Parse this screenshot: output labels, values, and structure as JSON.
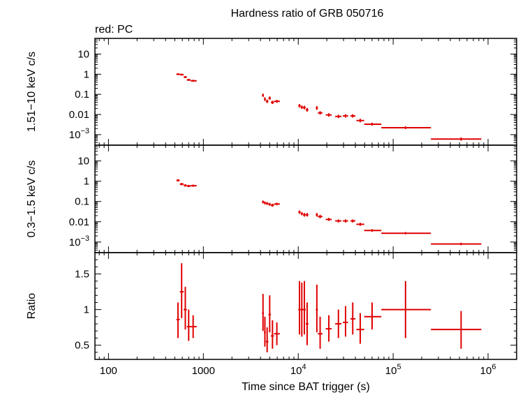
{
  "chart_data": {
    "type": "scatter",
    "title": "Hardness ratio of GRB 050716",
    "note": "red: PC",
    "x_axis": {
      "label": "Time since BAT trigger (s)",
      "scale": "log",
      "range": [
        72,
        2000000
      ],
      "ticks": [
        {
          "v": 100,
          "t": "100"
        },
        {
          "v": 1000,
          "t": "1000"
        },
        {
          "v": 10000,
          "b": "10",
          "e": "4"
        },
        {
          "v": 100000,
          "b": "10",
          "e": "5"
        },
        {
          "v": 1000000,
          "b": "10",
          "e": "6"
        }
      ]
    },
    "color": "#e00000",
    "panels": [
      {
        "id": "hard",
        "ylabel": "1.51−10 keV c/s",
        "scale": "log",
        "ylim": [
          0.0003,
          60
        ],
        "ticks": [
          {
            "v": 10,
            "t": "10"
          },
          {
            "v": 1,
            "t": "1"
          },
          {
            "v": 0.1,
            "t": "0.1"
          },
          {
            "v": 0.01,
            "t": "0.01"
          },
          {
            "v": 0.001,
            "b": "10",
            "e": "−3"
          }
        ],
        "points": [
          {
            "x": 540,
            "xl": 520,
            "xh": 565,
            "y": 1.0,
            "yl": 0.9,
            "yh": 1.12
          },
          {
            "x": 590,
            "xl": 565,
            "xh": 620,
            "y": 0.95,
            "yl": 0.85,
            "yh": 1.07
          },
          {
            "x": 645,
            "xl": 620,
            "xh": 670,
            "y": 0.72,
            "yl": 0.64,
            "yh": 0.81
          },
          {
            "x": 700,
            "xl": 670,
            "xh": 735,
            "y": 0.52,
            "yl": 0.46,
            "yh": 0.59
          },
          {
            "x": 780,
            "xl": 735,
            "xh": 850,
            "y": 0.47,
            "yl": 0.42,
            "yh": 0.53
          },
          {
            "x": 4250,
            "xl": 4150,
            "xh": 4350,
            "y": 0.09,
            "yl": 0.075,
            "yh": 0.108
          },
          {
            "x": 4450,
            "xl": 4350,
            "xh": 4550,
            "y": 0.058,
            "yl": 0.047,
            "yh": 0.071
          },
          {
            "x": 4700,
            "xl": 4550,
            "xh": 4850,
            "y": 0.045,
            "yl": 0.037,
            "yh": 0.055
          },
          {
            "x": 5000,
            "xl": 4850,
            "xh": 5150,
            "y": 0.065,
            "yl": 0.054,
            "yh": 0.078
          },
          {
            "x": 5350,
            "xl": 5150,
            "xh": 5550,
            "y": 0.04,
            "yl": 0.033,
            "yh": 0.048
          },
          {
            "x": 5950,
            "xl": 5550,
            "xh": 6400,
            "y": 0.045,
            "yl": 0.038,
            "yh": 0.053
          },
          {
            "x": 10300,
            "xl": 10000,
            "xh": 10600,
            "y": 0.027,
            "yl": 0.022,
            "yh": 0.033
          },
          {
            "x": 10900,
            "xl": 10600,
            "xh": 11200,
            "y": 0.023,
            "yl": 0.019,
            "yh": 0.028
          },
          {
            "x": 11600,
            "xl": 11200,
            "xh": 12000,
            "y": 0.022,
            "yl": 0.018,
            "yh": 0.027
          },
          {
            "x": 12400,
            "xl": 12000,
            "xh": 12800,
            "y": 0.017,
            "yl": 0.014,
            "yh": 0.021
          },
          {
            "x": 15700,
            "xl": 15300,
            "xh": 16100,
            "y": 0.021,
            "yl": 0.017,
            "yh": 0.026
          },
          {
            "x": 17000,
            "xl": 16100,
            "xh": 18000,
            "y": 0.012,
            "yl": 0.0098,
            "yh": 0.0146
          },
          {
            "x": 21000,
            "xl": 19500,
            "xh": 22500,
            "y": 0.0095,
            "yl": 0.0078,
            "yh": 0.0115
          },
          {
            "x": 26500,
            "xl": 24500,
            "xh": 28500,
            "y": 0.008,
            "yl": 0.0066,
            "yh": 0.0097
          },
          {
            "x": 31500,
            "xl": 29500,
            "xh": 33500,
            "y": 0.0085,
            "yl": 0.007,
            "yh": 0.0103
          },
          {
            "x": 37500,
            "xl": 35500,
            "xh": 40000,
            "y": 0.0085,
            "yl": 0.007,
            "yh": 0.0103
          },
          {
            "x": 45000,
            "xl": 41000,
            "xh": 49500,
            "y": 0.005,
            "yl": 0.0041,
            "yh": 0.0061
          },
          {
            "x": 60000,
            "xl": 49500,
            "xh": 75000,
            "y": 0.0033,
            "yl": 0.0028,
            "yh": 0.0039
          },
          {
            "x": 135000,
            "xl": 75000,
            "xh": 250000,
            "y": 0.0022,
            "yl": 0.0019,
            "yh": 0.0026
          },
          {
            "x": 520000,
            "xl": 250000,
            "xh": 850000,
            "y": 0.0006,
            "yl": 0.0005,
            "yh": 0.00072
          }
        ]
      },
      {
        "id": "soft",
        "ylabel": "0.3−1.5 keV c/s",
        "scale": "log",
        "ylim": [
          0.0003,
          60
        ],
        "ticks": [
          {
            "v": 10,
            "t": "10"
          },
          {
            "v": 1,
            "t": "1"
          },
          {
            "v": 0.1,
            "t": "0.1"
          },
          {
            "v": 0.01,
            "t": "0.01"
          },
          {
            "v": 0.001,
            "b": "10",
            "e": "−3"
          }
        ],
        "points": [
          {
            "x": 540,
            "xl": 520,
            "xh": 565,
            "y": 1.1,
            "yl": 0.96,
            "yh": 1.25
          },
          {
            "x": 590,
            "xl": 565,
            "xh": 620,
            "y": 0.72,
            "yl": 0.63,
            "yh": 0.82
          },
          {
            "x": 645,
            "xl": 620,
            "xh": 670,
            "y": 0.62,
            "yl": 0.54,
            "yh": 0.71
          },
          {
            "x": 700,
            "xl": 670,
            "xh": 735,
            "y": 0.58,
            "yl": 0.51,
            "yh": 0.66
          },
          {
            "x": 780,
            "xl": 735,
            "xh": 850,
            "y": 0.6,
            "yl": 0.53,
            "yh": 0.68
          },
          {
            "x": 4250,
            "xl": 4150,
            "xh": 4350,
            "y": 0.095,
            "yl": 0.081,
            "yh": 0.111
          },
          {
            "x": 4450,
            "xl": 4350,
            "xh": 4550,
            "y": 0.085,
            "yl": 0.072,
            "yh": 0.1
          },
          {
            "x": 4700,
            "xl": 4550,
            "xh": 4850,
            "y": 0.08,
            "yl": 0.068,
            "yh": 0.094
          },
          {
            "x": 5000,
            "xl": 4850,
            "xh": 5150,
            "y": 0.072,
            "yl": 0.061,
            "yh": 0.085
          },
          {
            "x": 5350,
            "xl": 5150,
            "xh": 5550,
            "y": 0.065,
            "yl": 0.055,
            "yh": 0.077
          },
          {
            "x": 5950,
            "xl": 5550,
            "xh": 6400,
            "y": 0.075,
            "yl": 0.065,
            "yh": 0.087
          },
          {
            "x": 10300,
            "xl": 10000,
            "xh": 10600,
            "y": 0.03,
            "yl": 0.025,
            "yh": 0.036
          },
          {
            "x": 10900,
            "xl": 10600,
            "xh": 11200,
            "y": 0.025,
            "yl": 0.021,
            "yh": 0.03
          },
          {
            "x": 11600,
            "xl": 11200,
            "xh": 12000,
            "y": 0.022,
            "yl": 0.018,
            "yh": 0.027
          },
          {
            "x": 12400,
            "xl": 12000,
            "xh": 12800,
            "y": 0.022,
            "yl": 0.018,
            "yh": 0.027
          },
          {
            "x": 15700,
            "xl": 15300,
            "xh": 16100,
            "y": 0.022,
            "yl": 0.018,
            "yh": 0.027
          },
          {
            "x": 17000,
            "xl": 16100,
            "xh": 18000,
            "y": 0.018,
            "yl": 0.015,
            "yh": 0.022
          },
          {
            "x": 21000,
            "xl": 19500,
            "xh": 22500,
            "y": 0.013,
            "yl": 0.011,
            "yh": 0.0155
          },
          {
            "x": 26500,
            "xl": 24500,
            "xh": 28500,
            "y": 0.011,
            "yl": 0.0092,
            "yh": 0.013
          },
          {
            "x": 31500,
            "xl": 29500,
            "xh": 33500,
            "y": 0.011,
            "yl": 0.0092,
            "yh": 0.013
          },
          {
            "x": 37500,
            "xl": 35500,
            "xh": 40000,
            "y": 0.011,
            "yl": 0.0092,
            "yh": 0.013
          },
          {
            "x": 45000,
            "xl": 41000,
            "xh": 49500,
            "y": 0.0075,
            "yl": 0.0063,
            "yh": 0.0089
          },
          {
            "x": 60000,
            "xl": 49500,
            "xh": 75000,
            "y": 0.0037,
            "yl": 0.0032,
            "yh": 0.0043
          },
          {
            "x": 135000,
            "xl": 75000,
            "xh": 250000,
            "y": 0.0027,
            "yl": 0.0024,
            "yh": 0.0031
          },
          {
            "x": 520000,
            "xl": 250000,
            "xh": 850000,
            "y": 0.0008,
            "yl": 0.0007,
            "yh": 0.00092
          }
        ]
      },
      {
        "id": "ratio",
        "ylabel": "Ratio",
        "scale": "linear",
        "ylim": [
          0.3,
          1.8
        ],
        "ticks": [
          {
            "v": 1.5,
            "t": "1.5"
          },
          {
            "v": 1,
            "t": "1"
          },
          {
            "v": 0.5,
            "t": "0.5"
          }
        ],
        "points": [
          {
            "x": 540,
            "xl": 520,
            "xh": 565,
            "y": 0.86,
            "yl": 0.6,
            "yh": 1.1
          },
          {
            "x": 590,
            "xl": 565,
            "xh": 620,
            "y": 1.25,
            "yl": 0.88,
            "yh": 1.65
          },
          {
            "x": 645,
            "xl": 620,
            "xh": 670,
            "y": 1.0,
            "yl": 0.72,
            "yh": 1.32
          },
          {
            "x": 700,
            "xl": 670,
            "xh": 735,
            "y": 0.76,
            "yl": 0.56,
            "yh": 1.0
          },
          {
            "x": 780,
            "xl": 735,
            "xh": 850,
            "y": 0.76,
            "yl": 0.6,
            "yh": 0.92
          },
          {
            "x": 4250,
            "xl": 4150,
            "xh": 4350,
            "y": 0.95,
            "yl": 0.7,
            "yh": 1.22
          },
          {
            "x": 4450,
            "xl": 4350,
            "xh": 4550,
            "y": 0.68,
            "yl": 0.48,
            "yh": 0.9
          },
          {
            "x": 4700,
            "xl": 4550,
            "xh": 4850,
            "y": 0.55,
            "yl": 0.4,
            "yh": 0.75
          },
          {
            "x": 5000,
            "xl": 4850,
            "xh": 5150,
            "y": 0.93,
            "yl": 0.68,
            "yh": 1.2
          },
          {
            "x": 5350,
            "xl": 5150,
            "xh": 5550,
            "y": 0.63,
            "yl": 0.45,
            "yh": 0.85
          },
          {
            "x": 5950,
            "xl": 5550,
            "xh": 6400,
            "y": 0.66,
            "yl": 0.5,
            "yh": 0.82
          },
          {
            "x": 10300,
            "xl": 10000,
            "xh": 10600,
            "y": 1.0,
            "yl": 0.65,
            "yh": 1.4
          },
          {
            "x": 10900,
            "xl": 10600,
            "xh": 11200,
            "y": 1.0,
            "yl": 0.62,
            "yh": 1.38
          },
          {
            "x": 11600,
            "xl": 11200,
            "xh": 12000,
            "y": 1.0,
            "yl": 0.65,
            "yh": 1.4
          },
          {
            "x": 12400,
            "xl": 12000,
            "xh": 12800,
            "y": 0.8,
            "yl": 0.5,
            "yh": 1.1
          },
          {
            "x": 15700,
            "xl": 15300,
            "xh": 16100,
            "y": 1.0,
            "yl": 0.68,
            "yh": 1.35
          },
          {
            "x": 17000,
            "xl": 16100,
            "xh": 18000,
            "y": 0.66,
            "yl": 0.45,
            "yh": 0.9
          },
          {
            "x": 21000,
            "xl": 19500,
            "xh": 22500,
            "y": 0.73,
            "yl": 0.55,
            "yh": 0.92
          },
          {
            "x": 26500,
            "xl": 24500,
            "xh": 28500,
            "y": 0.8,
            "yl": 0.6,
            "yh": 1.0
          },
          {
            "x": 31500,
            "xl": 29500,
            "xh": 33500,
            "y": 0.82,
            "yl": 0.62,
            "yh": 1.05
          },
          {
            "x": 37500,
            "xl": 35500,
            "xh": 40000,
            "y": 0.87,
            "yl": 0.65,
            "yh": 1.1
          },
          {
            "x": 45000,
            "xl": 41000,
            "xh": 49500,
            "y": 0.72,
            "yl": 0.52,
            "yh": 0.95
          },
          {
            "x": 60000,
            "xl": 49500,
            "xh": 75000,
            "y": 0.9,
            "yl": 0.72,
            "yh": 1.1
          },
          {
            "x": 135000,
            "xl": 75000,
            "xh": 250000,
            "y": 1.0,
            "yl": 0.6,
            "yh": 1.4
          },
          {
            "x": 520000,
            "xl": 250000,
            "xh": 850000,
            "y": 0.72,
            "yl": 0.45,
            "yh": 0.98
          }
        ]
      }
    ]
  }
}
